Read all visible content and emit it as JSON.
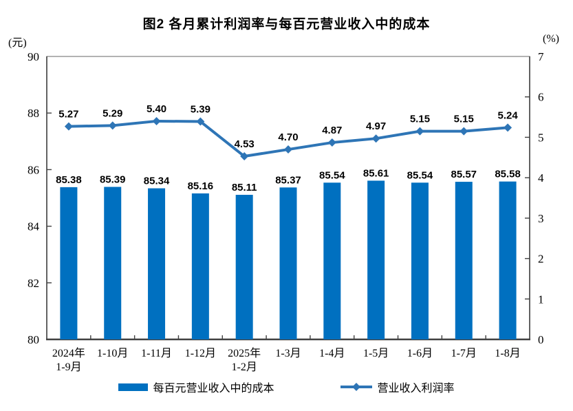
{
  "title": "图2 各月累计利润率与每百元营业收入中的成本",
  "left_axis_unit": "(元)",
  "right_axis_unit": "(%)",
  "legend": {
    "bar_label": "每百元营业收入中的成本",
    "line_label": "营业收入利润率"
  },
  "colors": {
    "bar": "#0070C0",
    "line": "#2E75B6",
    "axis": "#404040",
    "border": "#808080",
    "text": "#000000"
  },
  "chart_data": {
    "type": "combo-bar-line",
    "title": "图2 各月累计利润率与每百元营业收入中的成本",
    "categories": [
      [
        "2024年",
        "1-9月"
      ],
      [
        "1-10月"
      ],
      [
        "1-11月"
      ],
      [
        "1-12月"
      ],
      [
        "2025年",
        "1-2月"
      ],
      [
        "1-3月"
      ],
      [
        "1-4月"
      ],
      [
        "1-5月"
      ],
      [
        "1-6月"
      ],
      [
        "1-7月"
      ],
      [
        "1-8月"
      ]
    ],
    "series": [
      {
        "name": "每百元营业收入中的成本",
        "type": "bar",
        "axis": "left",
        "values": [
          85.38,
          85.39,
          85.34,
          85.16,
          85.11,
          85.37,
          85.54,
          85.61,
          85.54,
          85.57,
          85.58
        ],
        "labels": [
          "85.38",
          "85.39",
          "85.34",
          "85.16",
          "85.11",
          "85.37",
          "85.54",
          "85.61",
          "85.54",
          "85.57",
          "85.58"
        ]
      },
      {
        "name": "营业收入利润率",
        "type": "line",
        "axis": "right",
        "values": [
          5.27,
          5.29,
          5.4,
          5.39,
          4.53,
          4.7,
          4.87,
          4.97,
          5.15,
          5.15,
          5.24
        ],
        "labels": [
          "5.27",
          "5.29",
          "5.40",
          "5.39",
          "4.53",
          "4.70",
          "4.87",
          "4.97",
          "5.15",
          "5.15",
          "5.24"
        ]
      }
    ],
    "left_axis": {
      "unit": "元",
      "min": 80,
      "max": 90,
      "tick_step": 2,
      "ticks": [
        80,
        82,
        84,
        86,
        88,
        90
      ]
    },
    "right_axis": {
      "unit": "%",
      "min": 0,
      "max": 7,
      "tick_step": 1,
      "ticks": [
        0,
        1,
        2,
        3,
        4,
        5,
        6,
        7
      ]
    },
    "grid": false,
    "legend_position": "bottom"
  }
}
